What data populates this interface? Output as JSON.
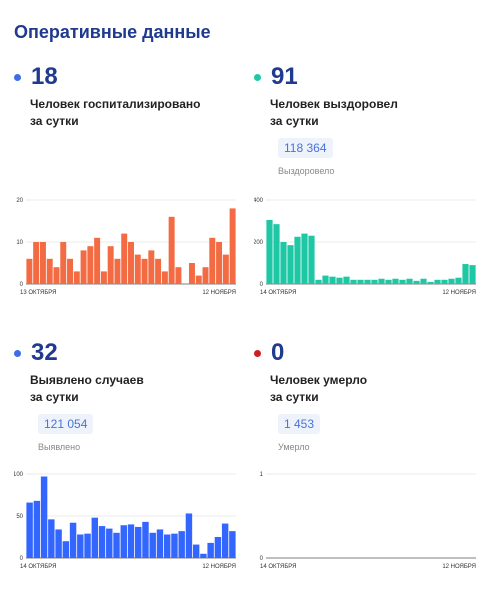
{
  "page": {
    "title": "Оперативные данные"
  },
  "panels": {
    "hospitalized": {
      "value": "18",
      "caption_line1": "Человек госпитализировано",
      "caption_line2": "за сутки",
      "color": "#f26b43",
      "dot_color": "#3b6ee8",
      "chart_data": {
        "type": "bar",
        "x_start_label": "13 ОКТЯБРЯ",
        "x_end_label": "12 НОЯБРЯ",
        "ylim": [
          0,
          20
        ],
        "yticks": [
          "0",
          "10",
          "20"
        ],
        "values": [
          6,
          10,
          10,
          6,
          4,
          10,
          6,
          3,
          8,
          9,
          11,
          3,
          9,
          6,
          12,
          10,
          7,
          6,
          8,
          6,
          3,
          16,
          4,
          0,
          5,
          2,
          4,
          11,
          10,
          7,
          18
        ]
      }
    },
    "recovered": {
      "value": "91",
      "caption_line1": "Человек выздоровел",
      "caption_line2": "за сутки",
      "total": "118 364",
      "total_label": "Выздоровело",
      "color": "#1ec8a5",
      "dot_color": "#1ec8a5",
      "chart_data": {
        "type": "bar",
        "x_start_label": "14 ОКТЯБРЯ",
        "x_end_label": "12 НОЯБРЯ",
        "ylim": [
          0,
          400
        ],
        "yticks": [
          "0",
          "200",
          "400"
        ],
        "values": [
          305,
          285,
          200,
          185,
          225,
          240,
          230,
          20,
          40,
          35,
          30,
          35,
          20,
          20,
          20,
          20,
          25,
          20,
          25,
          20,
          25,
          15,
          25,
          10,
          20,
          20,
          25,
          30,
          95,
          90
        ]
      }
    },
    "detected": {
      "value": "32",
      "caption_line1": "Выявлено случаев",
      "caption_line2": "за сутки",
      "total": "121 054",
      "total_label": "Выявлено",
      "color": "#3366ff",
      "dot_color": "#3b6ee8",
      "chart_data": {
        "type": "bar",
        "x_start_label": "14 ОКТЯБРЯ",
        "x_end_label": "12 НОЯБРЯ",
        "ylim": [
          0,
          100
        ],
        "yticks": [
          "0",
          "50",
          "100"
        ],
        "values": [
          66,
          68,
          97,
          46,
          34,
          20,
          42,
          28,
          29,
          48,
          38,
          35,
          30,
          39,
          40,
          37,
          43,
          30,
          34,
          28,
          29,
          32,
          53,
          16,
          5,
          18,
          25,
          41,
          32
        ]
      }
    },
    "deaths": {
      "value": "0",
      "caption_line1": "Человек умерло",
      "caption_line2": "за сутки",
      "total": "1 453",
      "total_label": "Умерло",
      "color": "#cc1f1f",
      "dot_color": "#cc1f1f",
      "chart_data": {
        "type": "bar",
        "x_start_label": "14 ОКТЯБРЯ",
        "x_end_label": "12 НОЯБРЯ",
        "ylim": [
          0,
          1
        ],
        "yticks": [
          "0",
          "1"
        ],
        "values": [
          0,
          0,
          0,
          0,
          0,
          0,
          0,
          0,
          0,
          0,
          0,
          0,
          0,
          0,
          0,
          0,
          0,
          0,
          0,
          0,
          0,
          0,
          0,
          0,
          0,
          0,
          0,
          0,
          0,
          0
        ]
      }
    }
  }
}
